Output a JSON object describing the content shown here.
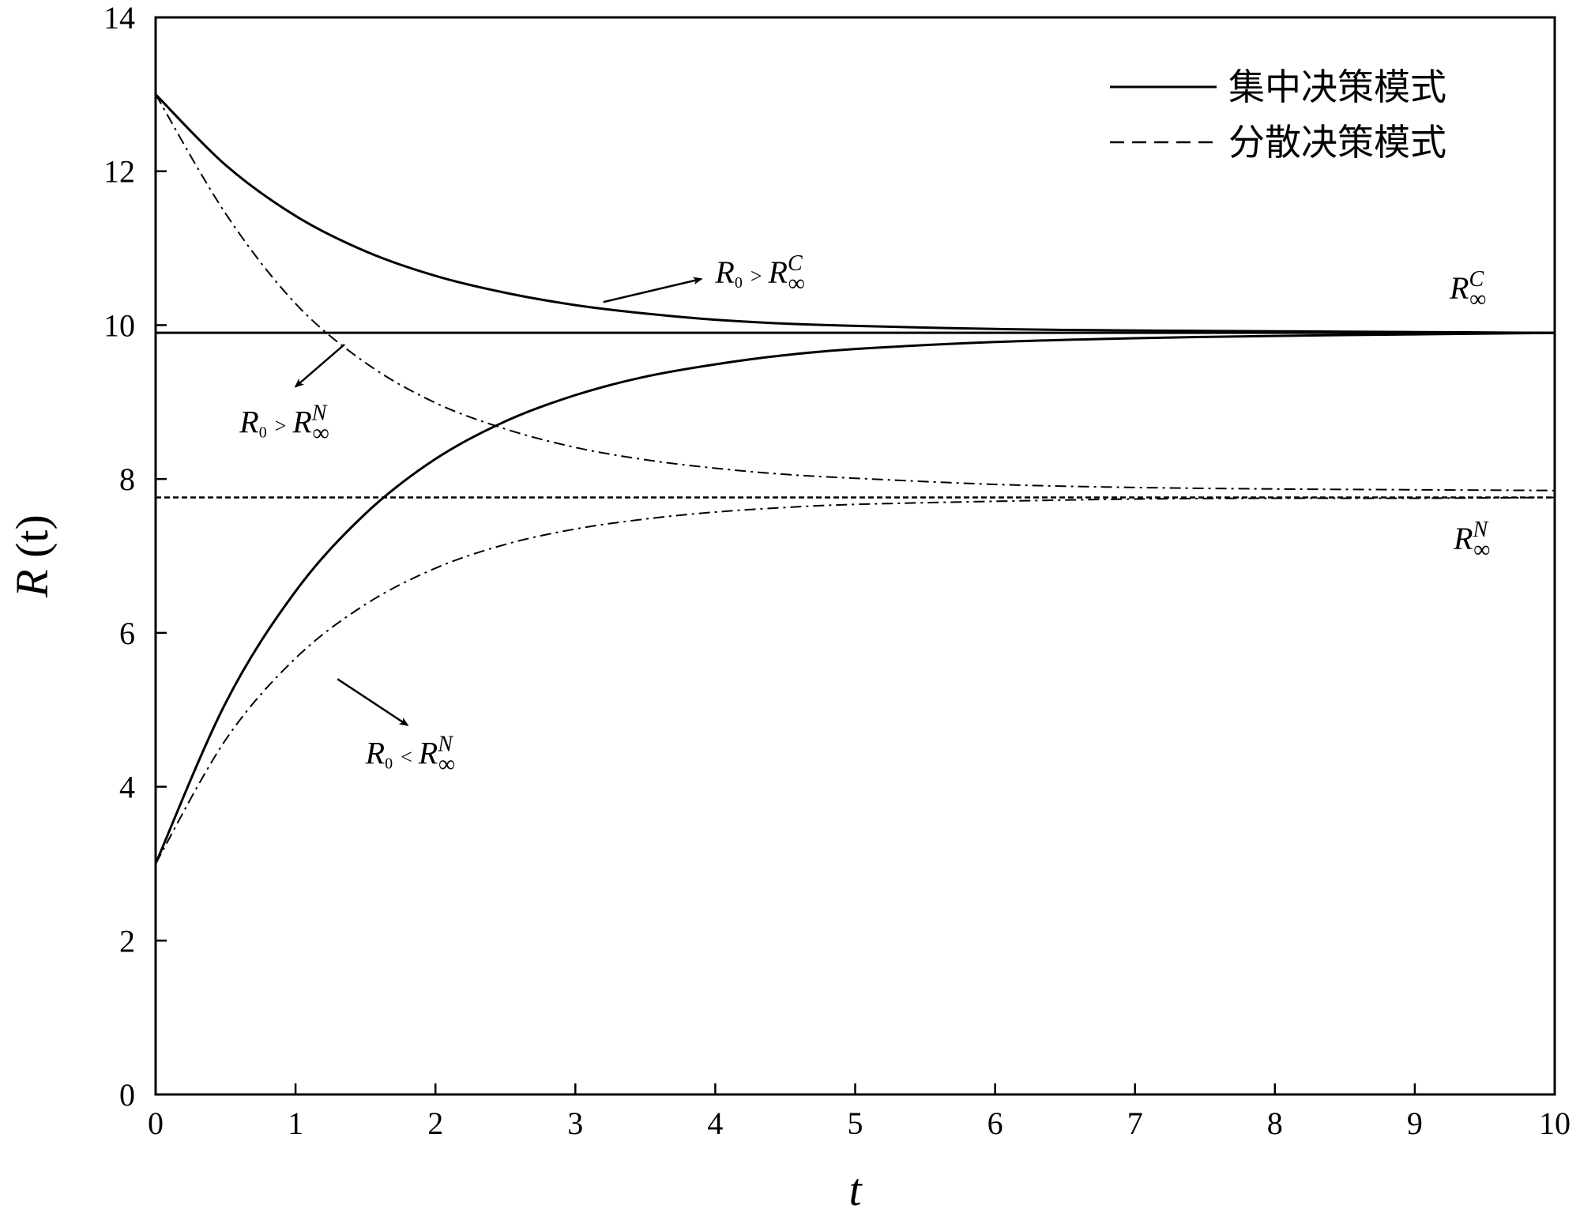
{
  "chart_data": {
    "type": "line",
    "xlabel": "t",
    "ylabel": {
      "italic": "R",
      "rest": " (t)"
    },
    "xlim": [
      0,
      10
    ],
    "ylim": [
      0,
      14
    ],
    "x_ticks": [
      "0",
      "1",
      "2",
      "3",
      "4",
      "5",
      "6",
      "7",
      "8",
      "9",
      "10"
    ],
    "y_ticks": [
      "0",
      "2",
      "4",
      "6",
      "8",
      "10",
      "12",
      "14"
    ],
    "legend": {
      "position": "top-right",
      "entries": [
        {
          "label": "集中决策模式",
          "style": "solid"
        },
        {
          "label": "分散决策模式",
          "style": "dash-dot"
        }
      ]
    },
    "series": [
      {
        "name": "集中决策模式",
        "style": "solid",
        "x": [
          0,
          0.5,
          1,
          1.5,
          2,
          2.5,
          3,
          3.5,
          4,
          4.5,
          5,
          6,
          7,
          8,
          9,
          10
        ],
        "y": [
          13.0,
          12.08,
          11.42,
          10.96,
          10.64,
          10.42,
          10.26,
          10.15,
          10.07,
          10.02,
          9.99,
          9.95,
          9.93,
          9.92,
          9.91,
          9.9
        ]
      },
      {
        "name": "集中决策模式",
        "style": "solid",
        "x": [
          0,
          0.5,
          1,
          1.5,
          2,
          2.5,
          3,
          3.5,
          4,
          4.5,
          5,
          6,
          7,
          8,
          9,
          10
        ],
        "y": [
          3.0,
          5.09,
          6.54,
          7.55,
          8.26,
          8.75,
          9.09,
          9.33,
          9.49,
          9.61,
          9.69,
          9.78,
          9.83,
          9.86,
          9.88,
          9.9
        ]
      },
      {
        "name": "分散决策模式",
        "style": "dash-dot",
        "x": [
          0,
          0.5,
          1,
          1.5,
          2,
          2.5,
          3,
          3.5,
          4,
          4.5,
          5,
          6,
          7,
          8,
          9,
          10
        ],
        "y": [
          13.0,
          11.45,
          10.28,
          9.51,
          8.99,
          8.65,
          8.41,
          8.25,
          8.14,
          8.06,
          8.01,
          7.93,
          7.89,
          7.87,
          7.86,
          7.85
        ]
      },
      {
        "name": "分散决策模式",
        "style": "dash-dot",
        "x": [
          0,
          0.5,
          1,
          1.5,
          2,
          2.5,
          3,
          3.5,
          4,
          4.5,
          5,
          6,
          7,
          8,
          9,
          10
        ],
        "y": [
          3.0,
          4.61,
          5.67,
          6.37,
          6.84,
          7.15,
          7.35,
          7.48,
          7.57,
          7.63,
          7.67,
          7.71,
          7.74,
          7.75,
          7.75,
          7.76
        ]
      }
    ],
    "reference_lines": [
      {
        "y": 9.9,
        "style": "solid",
        "label": {
          "base": "R",
          "sub": "∞",
          "sup": "C"
        }
      },
      {
        "y": 7.76,
        "style": "dotted",
        "label": {
          "base": "R",
          "sub": "∞",
          "sup": "N"
        }
      }
    ],
    "annotations": [
      {
        "text": {
          "r": "R",
          "r_sub": "0",
          "op": ">",
          "rinf": "R",
          "rinf_sub": "∞",
          "rinf_sup": "C"
        },
        "x": 4.0,
        "y": 10.55,
        "arrow_from": [
          3.2,
          10.3
        ],
        "arrow_to": [
          3.9,
          10.6
        ]
      },
      {
        "text": {
          "r": "R",
          "r_sub": "0",
          "op": ">",
          "rinf": "R",
          "rinf_sub": "∞",
          "rinf_sup": "N"
        },
        "x": 0.6,
        "y": 8.6,
        "arrow_from": [
          1.35,
          9.75
        ],
        "arrow_to": [
          1.0,
          9.2
        ]
      },
      {
        "text": {
          "r": "R",
          "r_sub": "0",
          "op": "<",
          "rinf": "R",
          "rinf_sub": "∞",
          "rinf_sup": "N"
        },
        "x": 1.5,
        "y": 4.3,
        "arrow_from": [
          1.3,
          5.4
        ],
        "arrow_to": [
          1.8,
          4.8
        ]
      }
    ]
  }
}
